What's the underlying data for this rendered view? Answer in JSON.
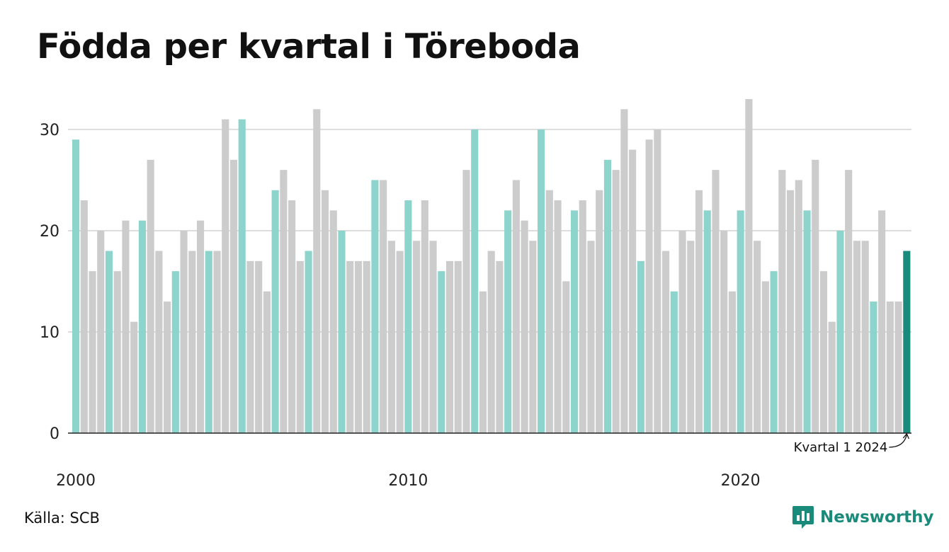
{
  "title": "Födda per kvartal i Töreboda",
  "source": "Källa: SCB",
  "brand": {
    "name": "Newsworthy",
    "icon": "newsworthy-logo-icon"
  },
  "colors": {
    "q1": "#8dd5cc",
    "other": "#cccccc",
    "latest": "#1a8a7a",
    "grid": "#dddddd",
    "baseline": "#222222"
  },
  "chart_data": {
    "type": "bar",
    "title": "Födda per kvartal i Töreboda",
    "xlabel": "",
    "ylabel": "",
    "start_year": 2000,
    "periods_per_year": 4,
    "ylim": [
      0,
      33
    ],
    "y_ticks": [
      0,
      10,
      20,
      30
    ],
    "x_ticks": [
      "2000",
      "2010",
      "2020"
    ],
    "grid": true,
    "values": [
      29,
      23,
      16,
      20,
      18,
      16,
      21,
      11,
      21,
      27,
      18,
      13,
      16,
      20,
      18,
      21,
      18,
      18,
      31,
      27,
      31,
      17,
      17,
      14,
      24,
      26,
      23,
      17,
      18,
      32,
      24,
      22,
      20,
      17,
      17,
      17,
      25,
      25,
      19,
      18,
      23,
      19,
      23,
      19,
      16,
      17,
      17,
      26,
      30,
      14,
      18,
      17,
      22,
      25,
      21,
      19,
      30,
      24,
      23,
      15,
      22,
      23,
      19,
      24,
      27,
      26,
      32,
      28,
      17,
      29,
      30,
      18,
      14,
      20,
      19,
      24,
      22,
      26,
      20,
      14,
      22,
      33,
      19,
      15,
      16,
      26,
      24,
      25,
      22,
      27,
      16,
      11,
      20,
      26,
      19,
      19,
      13,
      22,
      13,
      13,
      18
    ],
    "annotation": "Kvartal 1 2024"
  }
}
